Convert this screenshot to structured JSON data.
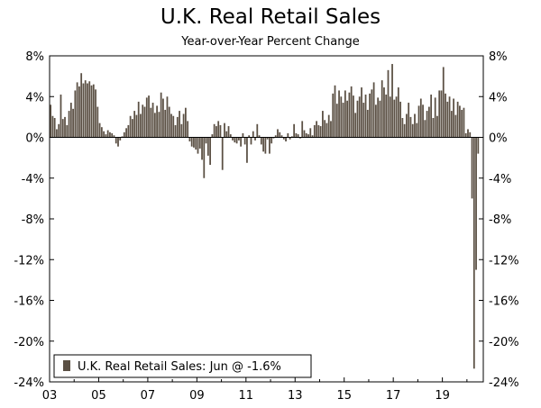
{
  "chart_data": {
    "type": "bar",
    "title": "U.K. Real Retail Sales",
    "subtitle": "Year-over-Year Percent Change",
    "xlabel": "",
    "ylabel": "",
    "ylim": [
      -24,
      8
    ],
    "y_ticks_left": [
      "8%",
      "4%",
      "0%",
      "-4%",
      "-8%",
      "-12%",
      "-16%",
      "-20%",
      "-24%"
    ],
    "y_ticks_right": [
      "8%",
      "4%",
      "0%",
      "-4%",
      "-8%",
      "-12%",
      "-16%",
      "-20%",
      "-24%"
    ],
    "y_tick_values": [
      8,
      4,
      0,
      -4,
      -8,
      -12,
      -16,
      -20,
      -24
    ],
    "x_tick_labels": [
      "03",
      "05",
      "07",
      "09",
      "11",
      "13",
      "15",
      "17",
      "19"
    ],
    "x_tick_years": [
      2003,
      2005,
      2007,
      2009,
      2011,
      2013,
      2015,
      2017,
      2019
    ],
    "x_start": "2003-01",
    "x_end": "2020-06",
    "series_color": "#5b5044",
    "legend": {
      "label": "U.K. Real Retail Sales: Jun @ -1.6%",
      "position": "bottom-left"
    },
    "series": [
      {
        "name": "U.K. Real Retail Sales",
        "frequency": "monthly",
        "start": "2003-01",
        "values": [
          3.2,
          2.1,
          1.9,
          0.8,
          1.3,
          4.2,
          1.8,
          2.0,
          1.2,
          2.6,
          3.4,
          2.8,
          4.6,
          5.4,
          5.0,
          6.3,
          5.3,
          5.6,
          5.3,
          5.5,
          5.1,
          5.2,
          4.7,
          3.0,
          1.4,
          1.0,
          0.6,
          0.3,
          0.7,
          0.5,
          0.4,
          0.2,
          -0.6,
          -0.9,
          -0.3,
          0.1,
          0.5,
          0.9,
          1.2,
          2.1,
          1.8,
          2.6,
          2.2,
          3.5,
          2.3,
          3.2,
          3.0,
          3.9,
          4.1,
          2.9,
          3.4,
          2.4,
          3.1,
          2.5,
          4.4,
          3.8,
          2.7,
          4.0,
          3.0,
          2.3,
          2.1,
          1.2,
          2.0,
          2.6,
          1.3,
          2.3,
          2.9,
          1.6,
          -0.4,
          -0.9,
          -1.0,
          -1.2,
          -1.6,
          -1.1,
          -2.2,
          -4.0,
          -0.6,
          -1.8,
          -2.7,
          0.3,
          1.3,
          1.1,
          1.6,
          1.2,
          -3.2,
          1.4,
          0.6,
          1.1,
          0.3,
          -0.3,
          -0.5,
          -0.6,
          -0.3,
          -0.9,
          0.4,
          -0.7,
          -2.5,
          0.2,
          -0.7,
          0.6,
          -0.3,
          1.3,
          0.2,
          -0.7,
          -1.4,
          -1.6,
          -0.2,
          -1.6,
          -0.6,
          -0.1,
          0.2,
          0.8,
          0.5,
          0.2,
          -0.2,
          -0.4,
          0.4,
          -0.2,
          0.1,
          1.3,
          0.4,
          0.3,
          -0.1,
          1.6,
          0.7,
          0.4,
          0.3,
          0.9,
          0.2,
          1.2,
          1.6,
          1.2,
          1.1,
          2.6,
          1.7,
          1.4,
          2.2,
          1.6,
          4.3,
          5.1,
          3.3,
          4.6,
          4.0,
          3.4,
          4.6,
          3.6,
          4.4,
          5.0,
          4.1,
          2.4,
          3.6,
          4.0,
          4.9,
          3.4,
          4.2,
          2.7,
          4.3,
          4.7,
          5.4,
          3.2,
          3.9,
          3.6,
          5.6,
          4.9,
          4.2,
          6.6,
          4.0,
          7.2,
          3.7,
          4.0,
          4.9,
          3.5,
          1.9,
          1.3,
          2.3,
          3.4,
          2.0,
          1.3,
          2.3,
          1.4,
          3.1,
          3.8,
          3.2,
          1.7,
          2.6,
          3.0,
          4.2,
          1.9,
          3.9,
          2.1,
          4.6,
          4.6,
          6.9,
          4.3,
          3.5,
          4.0,
          2.6,
          3.8,
          2.2,
          3.5,
          3.1,
          2.7,
          2.9,
          0.4,
          0.8,
          0.5,
          -6.0,
          -22.7,
          -13.0,
          -1.6
        ]
      }
    ]
  }
}
